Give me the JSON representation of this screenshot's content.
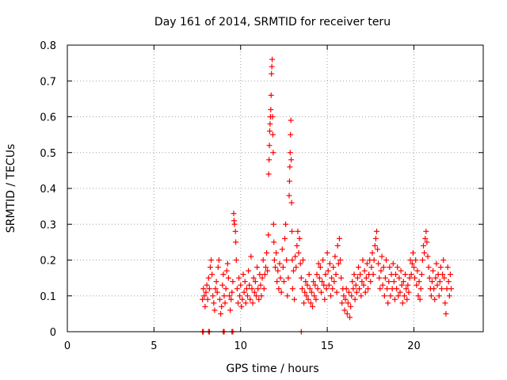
{
  "chart_data": {
    "type": "scatter",
    "title": "Day 161 of 2014, SRMTID for receiver teru",
    "xlabel": "GPS time / hours",
    "ylabel": "SRMTID / TECUs",
    "xlim": [
      0,
      24
    ],
    "ylim": [
      0,
      0.8
    ],
    "xticks": [
      0,
      5,
      10,
      15,
      20
    ],
    "yticks": [
      0,
      0.1,
      0.2,
      0.3,
      0.4,
      0.5,
      0.6,
      0.7,
      0.8
    ],
    "xtick_labels": [
      "0",
      "5",
      "10",
      "15",
      "20"
    ],
    "ytick_labels": [
      "0",
      "0.1",
      "0.2",
      "0.3",
      "0.4",
      "0.5",
      "0.6",
      "0.7",
      "0.8"
    ],
    "grid": true,
    "marker": "+",
    "series": [
      {
        "name": "SRMTID",
        "color": "#ff0000",
        "points": [
          [
            7.8,
            0.0
          ],
          [
            7.85,
            0.0
          ],
          [
            8.15,
            0.0
          ],
          [
            8.2,
            0.0
          ],
          [
            9.0,
            0.0
          ],
          [
            9.05,
            0.0
          ],
          [
            9.5,
            0.0
          ],
          [
            9.55,
            0.0
          ],
          [
            13.5,
            0.0
          ],
          [
            7.8,
            0.09
          ],
          [
            7.85,
            0.12
          ],
          [
            7.9,
            0.1
          ],
          [
            7.95,
            0.07
          ],
          [
            8.0,
            0.11
          ],
          [
            8.05,
            0.13
          ],
          [
            8.1,
            0.09
          ],
          [
            8.15,
            0.15
          ],
          [
            8.2,
            0.12
          ],
          [
            8.25,
            0.18
          ],
          [
            8.3,
            0.2
          ],
          [
            8.35,
            0.16
          ],
          [
            8.4,
            0.1
          ],
          [
            8.45,
            0.08
          ],
          [
            8.5,
            0.06
          ],
          [
            8.55,
            0.12
          ],
          [
            8.6,
            0.14
          ],
          [
            8.65,
            0.11
          ],
          [
            8.7,
            0.18
          ],
          [
            8.75,
            0.2
          ],
          [
            8.8,
            0.09
          ],
          [
            8.85,
            0.05
          ],
          [
            8.9,
            0.07
          ],
          [
            8.95,
            0.13
          ],
          [
            9.0,
            0.16
          ],
          [
            9.05,
            0.1
          ],
          [
            9.1,
            0.08
          ],
          [
            9.15,
            0.12
          ],
          [
            9.2,
            0.17
          ],
          [
            9.25,
            0.19
          ],
          [
            9.3,
            0.15
          ],
          [
            9.35,
            0.1
          ],
          [
            9.4,
            0.06
          ],
          [
            9.45,
            0.09
          ],
          [
            9.5,
            0.11
          ],
          [
            9.55,
            0.14
          ],
          [
            9.6,
            0.33
          ],
          [
            9.62,
            0.31
          ],
          [
            9.65,
            0.3
          ],
          [
            9.7,
            0.28
          ],
          [
            9.72,
            0.25
          ],
          [
            9.75,
            0.2
          ],
          [
            9.8,
            0.12
          ],
          [
            9.85,
            0.08
          ],
          [
            9.9,
            0.15
          ],
          [
            9.95,
            0.1
          ],
          [
            10.0,
            0.13
          ],
          [
            10.05,
            0.07
          ],
          [
            10.1,
            0.09
          ],
          [
            10.15,
            0.16
          ],
          [
            10.2,
            0.11
          ],
          [
            10.25,
            0.14
          ],
          [
            10.3,
            0.08
          ],
          [
            10.35,
            0.12
          ],
          [
            10.4,
            0.1
          ],
          [
            10.45,
            0.17
          ],
          [
            10.5,
            0.13
          ],
          [
            10.55,
            0.09
          ],
          [
            10.6,
            0.21
          ],
          [
            10.65,
            0.12
          ],
          [
            10.7,
            0.08
          ],
          [
            10.75,
            0.15
          ],
          [
            10.8,
            0.11
          ],
          [
            10.85,
            0.14
          ],
          [
            10.9,
            0.1
          ],
          [
            10.95,
            0.18
          ],
          [
            11.0,
            0.12
          ],
          [
            11.05,
            0.09
          ],
          [
            11.1,
            0.16
          ],
          [
            11.15,
            0.13
          ],
          [
            11.2,
            0.1
          ],
          [
            11.25,
            0.15
          ],
          [
            11.3,
            0.2
          ],
          [
            11.35,
            0.12
          ],
          [
            11.4,
            0.16
          ],
          [
            11.45,
            0.18
          ],
          [
            11.5,
            0.22
          ],
          [
            11.55,
            0.17
          ],
          [
            11.6,
            0.27
          ],
          [
            11.62,
            0.44
          ],
          [
            11.64,
            0.48
          ],
          [
            11.66,
            0.52
          ],
          [
            11.68,
            0.56
          ],
          [
            11.7,
            0.58
          ],
          [
            11.72,
            0.6
          ],
          [
            11.74,
            0.62
          ],
          [
            11.76,
            0.66
          ],
          [
            11.78,
            0.72
          ],
          [
            11.8,
            0.74
          ],
          [
            11.82,
            0.76
          ],
          [
            11.84,
            0.6
          ],
          [
            11.86,
            0.55
          ],
          [
            11.88,
            0.5
          ],
          [
            11.9,
            0.3
          ],
          [
            11.92,
            0.25
          ],
          [
            11.95,
            0.2
          ],
          [
            12.0,
            0.18
          ],
          [
            12.05,
            0.22
          ],
          [
            12.1,
            0.14
          ],
          [
            12.15,
            0.17
          ],
          [
            12.2,
            0.12
          ],
          [
            12.25,
            0.19
          ],
          [
            12.3,
            0.15
          ],
          [
            12.35,
            0.11
          ],
          [
            12.4,
            0.23
          ],
          [
            12.45,
            0.18
          ],
          [
            12.5,
            0.14
          ],
          [
            12.55,
            0.26
          ],
          [
            12.6,
            0.3
          ],
          [
            12.65,
            0.2
          ],
          [
            12.7,
            0.1
          ],
          [
            12.75,
            0.15
          ],
          [
            12.8,
            0.38
          ],
          [
            12.82,
            0.42
          ],
          [
            12.84,
            0.46
          ],
          [
            12.86,
            0.5
          ],
          [
            12.88,
            0.55
          ],
          [
            12.9,
            0.59
          ],
          [
            12.92,
            0.48
          ],
          [
            12.94,
            0.36
          ],
          [
            12.96,
            0.28
          ],
          [
            12.98,
            0.2
          ],
          [
            13.0,
            0.12
          ],
          [
            13.05,
            0.17
          ],
          [
            13.1,
            0.09
          ],
          [
            13.15,
            0.21
          ],
          [
            13.2,
            0.18
          ],
          [
            13.25,
            0.24
          ],
          [
            13.3,
            0.28
          ],
          [
            13.35,
            0.22
          ],
          [
            13.4,
            0.26
          ],
          [
            13.45,
            0.19
          ],
          [
            13.5,
            0.15
          ],
          [
            13.55,
            0.12
          ],
          [
            13.6,
            0.2
          ],
          [
            13.65,
            0.08
          ],
          [
            13.7,
            0.11
          ],
          [
            13.75,
            0.14
          ],
          [
            13.8,
            0.1
          ],
          [
            13.85,
            0.13
          ],
          [
            13.9,
            0.09
          ],
          [
            13.95,
            0.16
          ],
          [
            14.0,
            0.12
          ],
          [
            14.05,
            0.08
          ],
          [
            14.1,
            0.11
          ],
          [
            14.15,
            0.07
          ],
          [
            14.2,
            0.14
          ],
          [
            14.25,
            0.1
          ],
          [
            14.3,
            0.13
          ],
          [
            14.35,
            0.09
          ],
          [
            14.4,
            0.16
          ],
          [
            14.45,
            0.12
          ],
          [
            14.5,
            0.19
          ],
          [
            14.55,
            0.15
          ],
          [
            14.6,
            0.18
          ],
          [
            14.65,
            0.11
          ],
          [
            14.7,
            0.14
          ],
          [
            14.75,
            0.2
          ],
          [
            14.8,
            0.13
          ],
          [
            14.85,
            0.09
          ],
          [
            14.9,
            0.16
          ],
          [
            14.95,
            0.12
          ],
          [
            15.0,
            0.22
          ],
          [
            15.05,
            0.17
          ],
          [
            15.1,
            0.13
          ],
          [
            15.15,
            0.19
          ],
          [
            15.2,
            0.1
          ],
          [
            15.25,
            0.15
          ],
          [
            15.3,
            0.12
          ],
          [
            15.35,
            0.18
          ],
          [
            15.4,
            0.14
          ],
          [
            15.45,
            0.21
          ],
          [
            15.5,
            0.16
          ],
          [
            15.55,
            0.11
          ],
          [
            15.6,
            0.24
          ],
          [
            15.65,
            0.19
          ],
          [
            15.7,
            0.26
          ],
          [
            15.75,
            0.2
          ],
          [
            15.8,
            0.15
          ],
          [
            15.85,
            0.08
          ],
          [
            15.9,
            0.12
          ],
          [
            15.95,
            0.1
          ],
          [
            16.0,
            0.06
          ],
          [
            16.05,
            0.09
          ],
          [
            16.1,
            0.12
          ],
          [
            16.15,
            0.05
          ],
          [
            16.2,
            0.08
          ],
          [
            16.25,
            0.11
          ],
          [
            16.3,
            0.04
          ],
          [
            16.35,
            0.07
          ],
          [
            16.4,
            0.1
          ],
          [
            16.45,
            0.14
          ],
          [
            16.5,
            0.12
          ],
          [
            16.55,
            0.16
          ],
          [
            16.6,
            0.09
          ],
          [
            16.65,
            0.13
          ],
          [
            16.7,
            0.11
          ],
          [
            16.75,
            0.15
          ],
          [
            16.8,
            0.18
          ],
          [
            16.85,
            0.12
          ],
          [
            16.9,
            0.16
          ],
          [
            16.95,
            0.1
          ],
          [
            17.0,
            0.14
          ],
          [
            17.05,
            0.2
          ],
          [
            17.1,
            0.13
          ],
          [
            17.15,
            0.17
          ],
          [
            17.2,
            0.11
          ],
          [
            17.25,
            0.15
          ],
          [
            17.3,
            0.19
          ],
          [
            17.35,
            0.12
          ],
          [
            17.4,
            0.16
          ],
          [
            17.45,
            0.2
          ],
          [
            17.5,
            0.14
          ],
          [
            17.55,
            0.18
          ],
          [
            17.6,
            0.22
          ],
          [
            17.65,
            0.16
          ],
          [
            17.7,
            0.2
          ],
          [
            17.75,
            0.24
          ],
          [
            17.8,
            0.26
          ],
          [
            17.85,
            0.28
          ],
          [
            17.9,
            0.23
          ],
          [
            17.95,
            0.19
          ],
          [
            18.0,
            0.15
          ],
          [
            18.05,
            0.12
          ],
          [
            18.1,
            0.17
          ],
          [
            18.15,
            0.21
          ],
          [
            18.2,
            0.13
          ],
          [
            18.25,
            0.18
          ],
          [
            18.3,
            0.1
          ],
          [
            18.35,
            0.15
          ],
          [
            18.4,
            0.2
          ],
          [
            18.45,
            0.12
          ],
          [
            18.5,
            0.08
          ],
          [
            18.55,
            0.14
          ],
          [
            18.6,
            0.18
          ],
          [
            18.65,
            0.1
          ],
          [
            18.7,
            0.16
          ],
          [
            18.75,
            0.12
          ],
          [
            18.8,
            0.19
          ],
          [
            18.85,
            0.14
          ],
          [
            18.9,
            0.09
          ],
          [
            18.95,
            0.16
          ],
          [
            19.0,
            0.12
          ],
          [
            19.05,
            0.18
          ],
          [
            19.1,
            0.1
          ],
          [
            19.15,
            0.15
          ],
          [
            19.2,
            0.11
          ],
          [
            19.25,
            0.17
          ],
          [
            19.3,
            0.13
          ],
          [
            19.35,
            0.08
          ],
          [
            19.4,
            0.14
          ],
          [
            19.45,
            0.1
          ],
          [
            19.5,
            0.16
          ],
          [
            19.55,
            0.12
          ],
          [
            19.6,
            0.09
          ],
          [
            19.65,
            0.13
          ],
          [
            19.7,
            0.11
          ],
          [
            19.75,
            0.15
          ],
          [
            19.8,
            0.2
          ],
          [
            19.85,
            0.16
          ],
          [
            19.9,
            0.19
          ],
          [
            19.95,
            0.22
          ],
          [
            20.0,
            0.18
          ],
          [
            20.05,
            0.15
          ],
          [
            20.1,
            0.2
          ],
          [
            20.15,
            0.13
          ],
          [
            20.2,
            0.17
          ],
          [
            20.25,
            0.1
          ],
          [
            20.3,
            0.14
          ],
          [
            20.35,
            0.09
          ],
          [
            20.4,
            0.12
          ],
          [
            20.45,
            0.16
          ],
          [
            20.5,
            0.2
          ],
          [
            20.55,
            0.24
          ],
          [
            20.6,
            0.22
          ],
          [
            20.65,
            0.26
          ],
          [
            20.7,
            0.28
          ],
          [
            20.75,
            0.25
          ],
          [
            20.8,
            0.21
          ],
          [
            20.85,
            0.18
          ],
          [
            20.9,
            0.15
          ],
          [
            20.95,
            0.12
          ],
          [
            21.0,
            0.1
          ],
          [
            21.05,
            0.14
          ],
          [
            21.1,
            0.17
          ],
          [
            21.15,
            0.12
          ],
          [
            21.2,
            0.09
          ],
          [
            21.25,
            0.15
          ],
          [
            21.3,
            0.19
          ],
          [
            21.35,
            0.13
          ],
          [
            21.4,
            0.16
          ],
          [
            21.45,
            0.1
          ],
          [
            21.5,
            0.14
          ],
          [
            21.55,
            0.18
          ],
          [
            21.6,
            0.12
          ],
          [
            21.65,
            0.16
          ],
          [
            21.7,
            0.2
          ],
          [
            21.75,
            0.15
          ],
          [
            21.8,
            0.08
          ],
          [
            21.85,
            0.05
          ],
          [
            21.9,
            0.12
          ],
          [
            21.95,
            0.18
          ],
          [
            22.0,
            0.14
          ],
          [
            22.05,
            0.1
          ],
          [
            22.1,
            0.16
          ],
          [
            22.15,
            0.12
          ]
        ]
      }
    ]
  }
}
